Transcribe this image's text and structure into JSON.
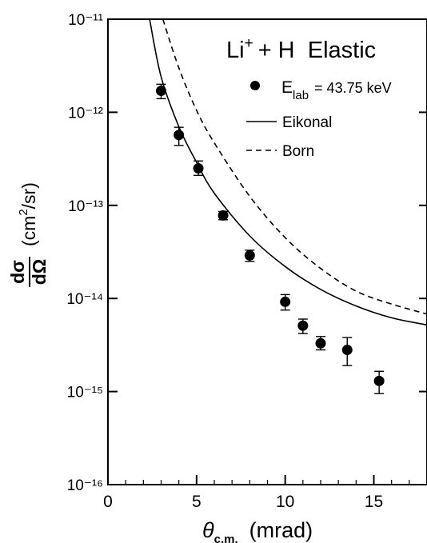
{
  "chart_data": {
    "type": "scatter",
    "title": "Li⁺ + H Elastic",
    "xlabel": "θc.m. (mrad)",
    "ylabel": "dσ/dΩ (cm²/sr)",
    "xlim": [
      0,
      18
    ],
    "ylim": [
      1e-16,
      1e-11
    ],
    "yscale": "log",
    "x_ticks": [
      0,
      5,
      10,
      15
    ],
    "x_tick_labels": [
      "0",
      "5",
      "10",
      "15"
    ],
    "y_ticks": [
      -16,
      -15,
      -14,
      -13,
      -12,
      -11
    ],
    "y_tick_labels": [
      "10⁻¹⁶",
      "10⁻¹⁵",
      "10⁻¹⁴",
      "10⁻¹³",
      "10⁻¹²",
      "10⁻¹¹"
    ],
    "grid": false,
    "legend_position": "top-right",
    "series": [
      {
        "name": "Elab = 43.75 keV",
        "style": "points-with-error-bars",
        "points": [
          {
            "x": 3.0,
            "y": 1.7e-12,
            "ylow": 1.4e-12,
            "yhigh": 2e-12
          },
          {
            "x": 4.0,
            "y": 5.7e-13,
            "ylow": 4.4e-13,
            "yhigh": 6.9e-13
          },
          {
            "x": 5.1,
            "y": 2.5e-13,
            "ylow": 2.1e-13,
            "yhigh": 3e-13
          },
          {
            "x": 6.5,
            "y": 7.8e-14,
            "ylow": 7e-14,
            "yhigh": 8.6e-14
          },
          {
            "x": 8.0,
            "y": 2.9e-14,
            "ylow": 2.5e-14,
            "yhigh": 3.3e-14
          },
          {
            "x": 10.0,
            "y": 9.2e-15,
            "ylow": 7.5e-15,
            "yhigh": 1.1e-14
          },
          {
            "x": 11.0,
            "y": 5.1e-15,
            "ylow": 4.2e-15,
            "yhigh": 6e-15
          },
          {
            "x": 12.0,
            "y": 3.3e-15,
            "ylow": 2.8e-15,
            "yhigh": 3.9e-15
          },
          {
            "x": 13.5,
            "y": 2.8e-15,
            "ylow": 1.9e-15,
            "yhigh": 3.8e-15
          },
          {
            "x": 15.3,
            "y": 1.3e-15,
            "ylow": 9.5e-16,
            "yhigh": 1.65e-15
          }
        ]
      },
      {
        "name": "Eikonal",
        "style": "solid-line",
        "points": [
          {
            "x": 2.35,
            "y": 1e-11
          },
          {
            "x": 3.0,
            "y": 2.4e-12
          },
          {
            "x": 4.0,
            "y": 7e-13
          },
          {
            "x": 5.0,
            "y": 2.9e-13
          },
          {
            "x": 6.0,
            "y": 1.35e-13
          },
          {
            "x": 8.0,
            "y": 4.7e-14
          },
          {
            "x": 10.0,
            "y": 2.2e-14
          },
          {
            "x": 12.0,
            "y": 1.25e-14
          },
          {
            "x": 14.0,
            "y": 8.3e-15
          },
          {
            "x": 16.0,
            "y": 6.2e-15
          },
          {
            "x": 18.0,
            "y": 5.2e-15
          }
        ]
      },
      {
        "name": "Born",
        "style": "dashed-line",
        "points": [
          {
            "x": 3.1,
            "y": 1e-11
          },
          {
            "x": 4.0,
            "y": 3e-12
          },
          {
            "x": 5.0,
            "y": 1.05e-12
          },
          {
            "x": 6.0,
            "y": 4.7e-13
          },
          {
            "x": 8.0,
            "y": 1.25e-13
          },
          {
            "x": 10.0,
            "y": 4.5e-14
          },
          {
            "x": 12.0,
            "y": 2.1e-14
          },
          {
            "x": 14.0,
            "y": 1.2e-14
          },
          {
            "x": 16.0,
            "y": 8.7e-15
          },
          {
            "x": 18.0,
            "y": 6.8e-15
          }
        ]
      }
    ],
    "legend": {
      "points_label_main": "E",
      "points_label_sub": "lab",
      "points_label_value": "= 43.75 keV",
      "eikonal_label": "Eikonal",
      "born_label": "Born"
    },
    "title_parts": {
      "species": "Li",
      "charge": "+",
      "rest": "+ H  Elastic"
    },
    "xlabel_parts": {
      "symbol": "θ",
      "subscript": "c.m.",
      "unit": "(mrad)"
    },
    "ylabel_parts": {
      "num": "dσ",
      "den": "dΩ",
      "unit_pre": "(cm",
      "unit_sup": "2",
      "unit_post": "/sr)"
    }
  }
}
